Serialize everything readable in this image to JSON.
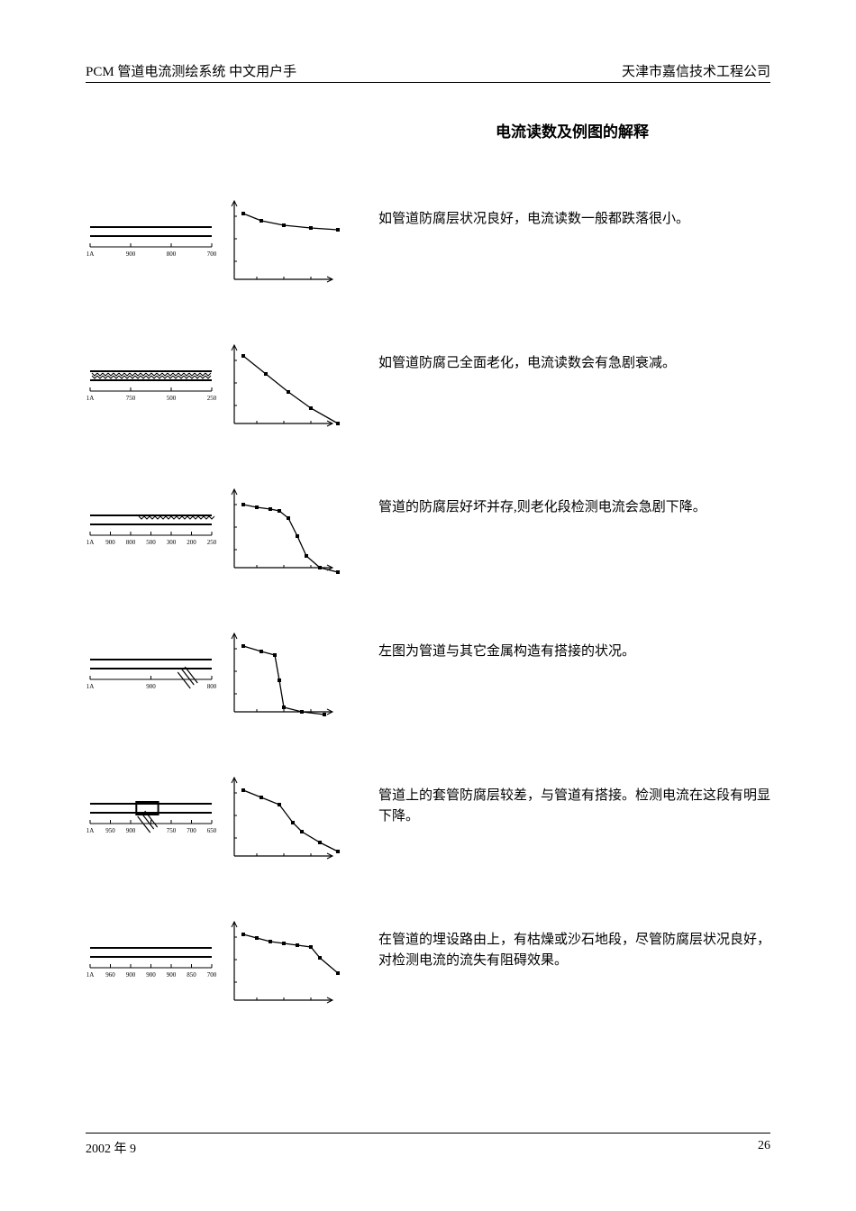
{
  "header": {
    "left": "PCM 管道电流测绘系统 中文用户手",
    "right": "天津市嘉信技术工程公司"
  },
  "title": "电流读数及例图的解释",
  "rows": [
    {
      "pipe": {
        "labels": [
          "1A",
          "900",
          "800",
          "700"
        ],
        "style": "good"
      },
      "chart": {
        "points": [
          [
            10,
            12
          ],
          [
            30,
            20
          ],
          [
            55,
            25
          ],
          [
            85,
            28
          ],
          [
            115,
            30
          ]
        ],
        "type": "line",
        "ylim": [
          0,
          100
        ],
        "xlim": [
          0,
          120
        ]
      },
      "text": "如管道防腐层状况良好，电流读数一般都跌落很小。"
    },
    {
      "pipe": {
        "labels": [
          "1A",
          "750",
          "500",
          "250"
        ],
        "style": "aged"
      },
      "chart": {
        "points": [
          [
            10,
            10
          ],
          [
            35,
            30
          ],
          [
            60,
            50
          ],
          [
            85,
            68
          ],
          [
            115,
            85
          ]
        ],
        "type": "line"
      },
      "text": "如管道防腐己全面老化，电流读数会有急剧衰减。"
    },
    {
      "pipe": {
        "labels": [
          "1A",
          "900",
          "800",
          "500",
          "300",
          "200",
          "250"
        ],
        "style": "partial"
      },
      "chart": {
        "points": [
          [
            10,
            15
          ],
          [
            25,
            18
          ],
          [
            40,
            20
          ],
          [
            50,
            22
          ],
          [
            60,
            30
          ],
          [
            70,
            50
          ],
          [
            80,
            72
          ],
          [
            95,
            85
          ],
          [
            115,
            90
          ]
        ],
        "type": "line"
      },
      "text": "管道的防腐层好坏并存,则老化段检测电流会急剧下降。"
    },
    {
      "pipe": {
        "labels": [
          "1A",
          "900",
          "800"
        ],
        "style": "contact"
      },
      "chart": {
        "points": [
          [
            10,
            12
          ],
          [
            30,
            18
          ],
          [
            45,
            22
          ],
          [
            50,
            50
          ],
          [
            55,
            80
          ],
          [
            75,
            85
          ],
          [
            100,
            88
          ]
        ],
        "type": "line"
      },
      "text": "左图为管道与其它金属构造有搭接的状况。"
    },
    {
      "pipe": {
        "labels": [
          "1A",
          "950",
          "900",
          "",
          "750",
          "700",
          "650"
        ],
        "style": "sleeve"
      },
      "chart": {
        "points": [
          [
            10,
            12
          ],
          [
            30,
            20
          ],
          [
            50,
            28
          ],
          [
            65,
            48
          ],
          [
            75,
            58
          ],
          [
            95,
            70
          ],
          [
            115,
            80
          ]
        ],
        "type": "line"
      },
      "text": "管道上的套管防腐层较差，与管道有搭接。检测电流在这段有明显下降。"
    },
    {
      "pipe": {
        "labels": [
          "1A",
          "960",
          "900",
          "900",
          "900",
          "850",
          "700"
        ],
        "style": "plateau"
      },
      "chart": {
        "points": [
          [
            10,
            12
          ],
          [
            25,
            16
          ],
          [
            40,
            20
          ],
          [
            55,
            22
          ],
          [
            70,
            24
          ],
          [
            85,
            26
          ],
          [
            95,
            38
          ],
          [
            115,
            55
          ]
        ],
        "type": "line"
      },
      "text": "在管道的埋设路由上，有枯燥或沙石地段，尽管防腐层状况良好，对检测电流的流失有阻碍效果。"
    }
  ],
  "footer": {
    "date": "2002 年 9",
    "page": "26"
  },
  "colors": {
    "line": "#000000",
    "bg": "#ffffff"
  }
}
